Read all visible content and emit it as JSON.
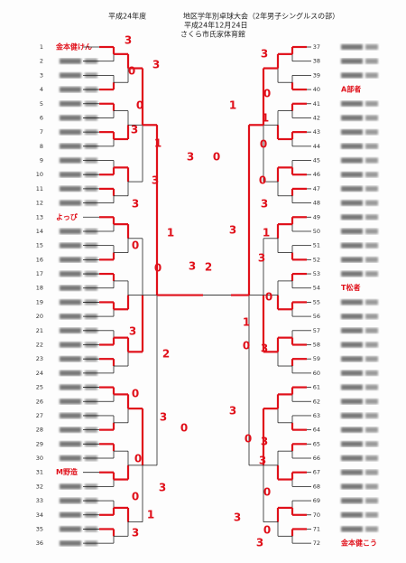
{
  "header": {
    "year": "平成24年度",
    "title": "地区学年別卓球大会（2年男子シングルスの部）",
    "date": "平成24年12月24日",
    "venue": "さくら市氏家体育館"
  },
  "left": [
    {
      "no": 1,
      "name": "金本健けん"
    },
    {
      "no": 2
    },
    {
      "no": 3
    },
    {
      "no": 4
    },
    {
      "no": 5
    },
    {
      "no": 6
    },
    {
      "no": 7
    },
    {
      "no": 8
    },
    {
      "no": 9
    },
    {
      "no": 10
    },
    {
      "no": 11
    },
    {
      "no": 12
    },
    {
      "no": 13,
      "name": "よっぴ"
    },
    {
      "no": 14
    },
    {
      "no": 15
    },
    {
      "no": 16
    },
    {
      "no": 17
    },
    {
      "no": 18
    },
    {
      "no": 19
    },
    {
      "no": 20
    },
    {
      "no": 21
    },
    {
      "no": 22
    },
    {
      "no": 23
    },
    {
      "no": 24
    },
    {
      "no": 25
    },
    {
      "no": 26
    },
    {
      "no": 27
    },
    {
      "no": 28
    },
    {
      "no": 29
    },
    {
      "no": 30
    },
    {
      "no": 31,
      "name": "M野造"
    },
    {
      "no": 32
    },
    {
      "no": 33
    },
    {
      "no": 34
    },
    {
      "no": 35
    },
    {
      "no": 36
    }
  ],
  "right": [
    {
      "no": 37
    },
    {
      "no": 38
    },
    {
      "no": 39
    },
    {
      "no": 40,
      "name": "A部者"
    },
    {
      "no": 41
    },
    {
      "no": 42
    },
    {
      "no": 43
    },
    {
      "no": 44
    },
    {
      "no": 45
    },
    {
      "no": 46
    },
    {
      "no": 47
    },
    {
      "no": 48
    },
    {
      "no": 49
    },
    {
      "no": 50
    },
    {
      "no": 51
    },
    {
      "no": 52
    },
    {
      "no": 53
    },
    {
      "no": 54,
      "name": "T松者"
    },
    {
      "no": 55
    },
    {
      "no": 56
    },
    {
      "no": 57
    },
    {
      "no": 58
    },
    {
      "no": 59
    },
    {
      "no": 60
    },
    {
      "no": 61
    },
    {
      "no": 62
    },
    {
      "no": 63
    },
    {
      "no": 64
    },
    {
      "no": 65
    },
    {
      "no": 66
    },
    {
      "no": 67
    },
    {
      "no": 68
    },
    {
      "no": 69
    },
    {
      "no": 70
    },
    {
      "no": 71
    },
    {
      "no": 72,
      "name": "金本健こう"
    }
  ],
  "scores": [
    "3",
    "3",
    "0",
    "0",
    "3",
    "1",
    "3",
    "3",
    "3",
    "1",
    "0",
    "0",
    "3",
    "2",
    "3",
    "2",
    "0",
    "3",
    "0",
    "0",
    "3",
    "0",
    "1",
    "3",
    "3",
    "1",
    "0",
    "0",
    "1",
    "0",
    "0",
    "3",
    "3",
    "1",
    "3",
    "1",
    "0",
    "3",
    "0",
    "3",
    "0",
    "3",
    "3",
    "0",
    "3",
    "3",
    "0"
  ]
}
